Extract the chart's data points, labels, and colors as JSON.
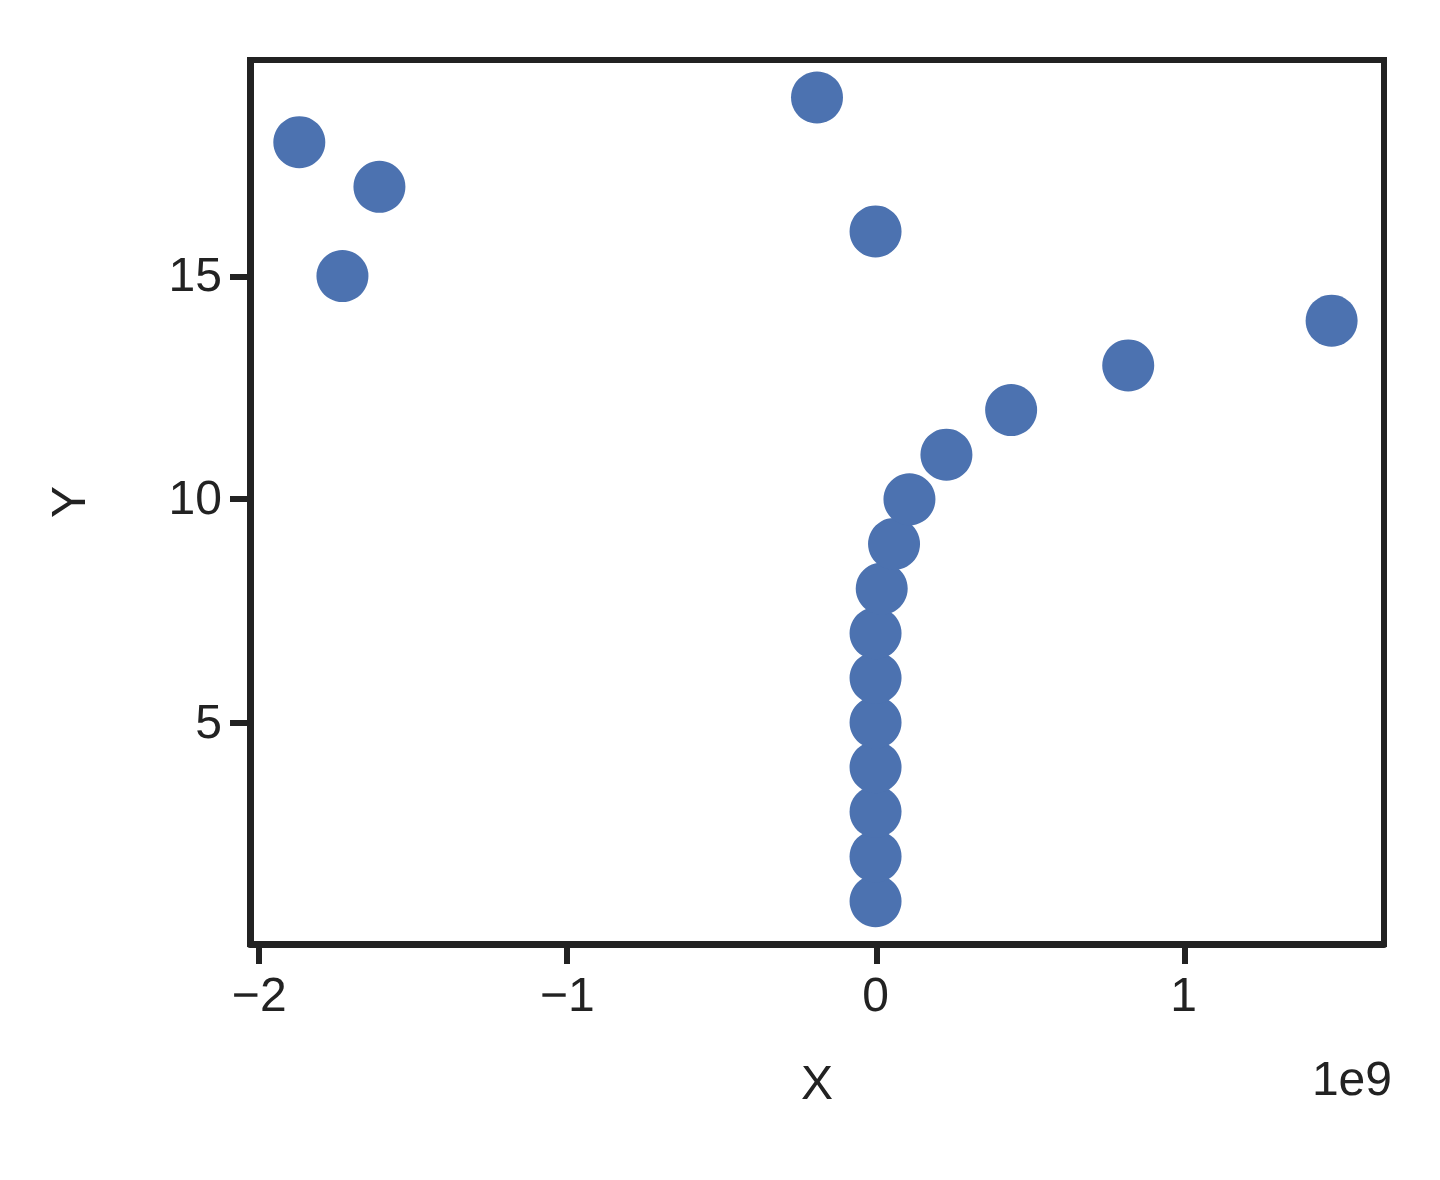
{
  "chart_data": {
    "type": "scatter",
    "xlabel": "X",
    "ylabel": "Y",
    "annotations": [
      "1e9"
    ],
    "x": [
      0,
      0,
      0,
      0,
      0,
      0,
      0,
      0.02,
      0.06,
      0.11,
      0.23,
      0.44,
      0.82,
      1.48,
      -1.73,
      0,
      -1.61,
      -1.87,
      -0.19
    ],
    "series": [
      {
        "color": "#4c72b0",
        "values": [
          1,
          2,
          3,
          4,
          5,
          6,
          7,
          8,
          9,
          10,
          11,
          12,
          13,
          14,
          15,
          16,
          17,
          18,
          19
        ]
      }
    ],
    "xlim": [
      -2.03,
      1.65
    ],
    "xticks": [
      -2,
      -1,
      0,
      1
    ],
    "ylim": [
      0.04,
      19.84
    ],
    "yticks": [
      5,
      10,
      15
    ],
    "marker": "circle"
  }
}
